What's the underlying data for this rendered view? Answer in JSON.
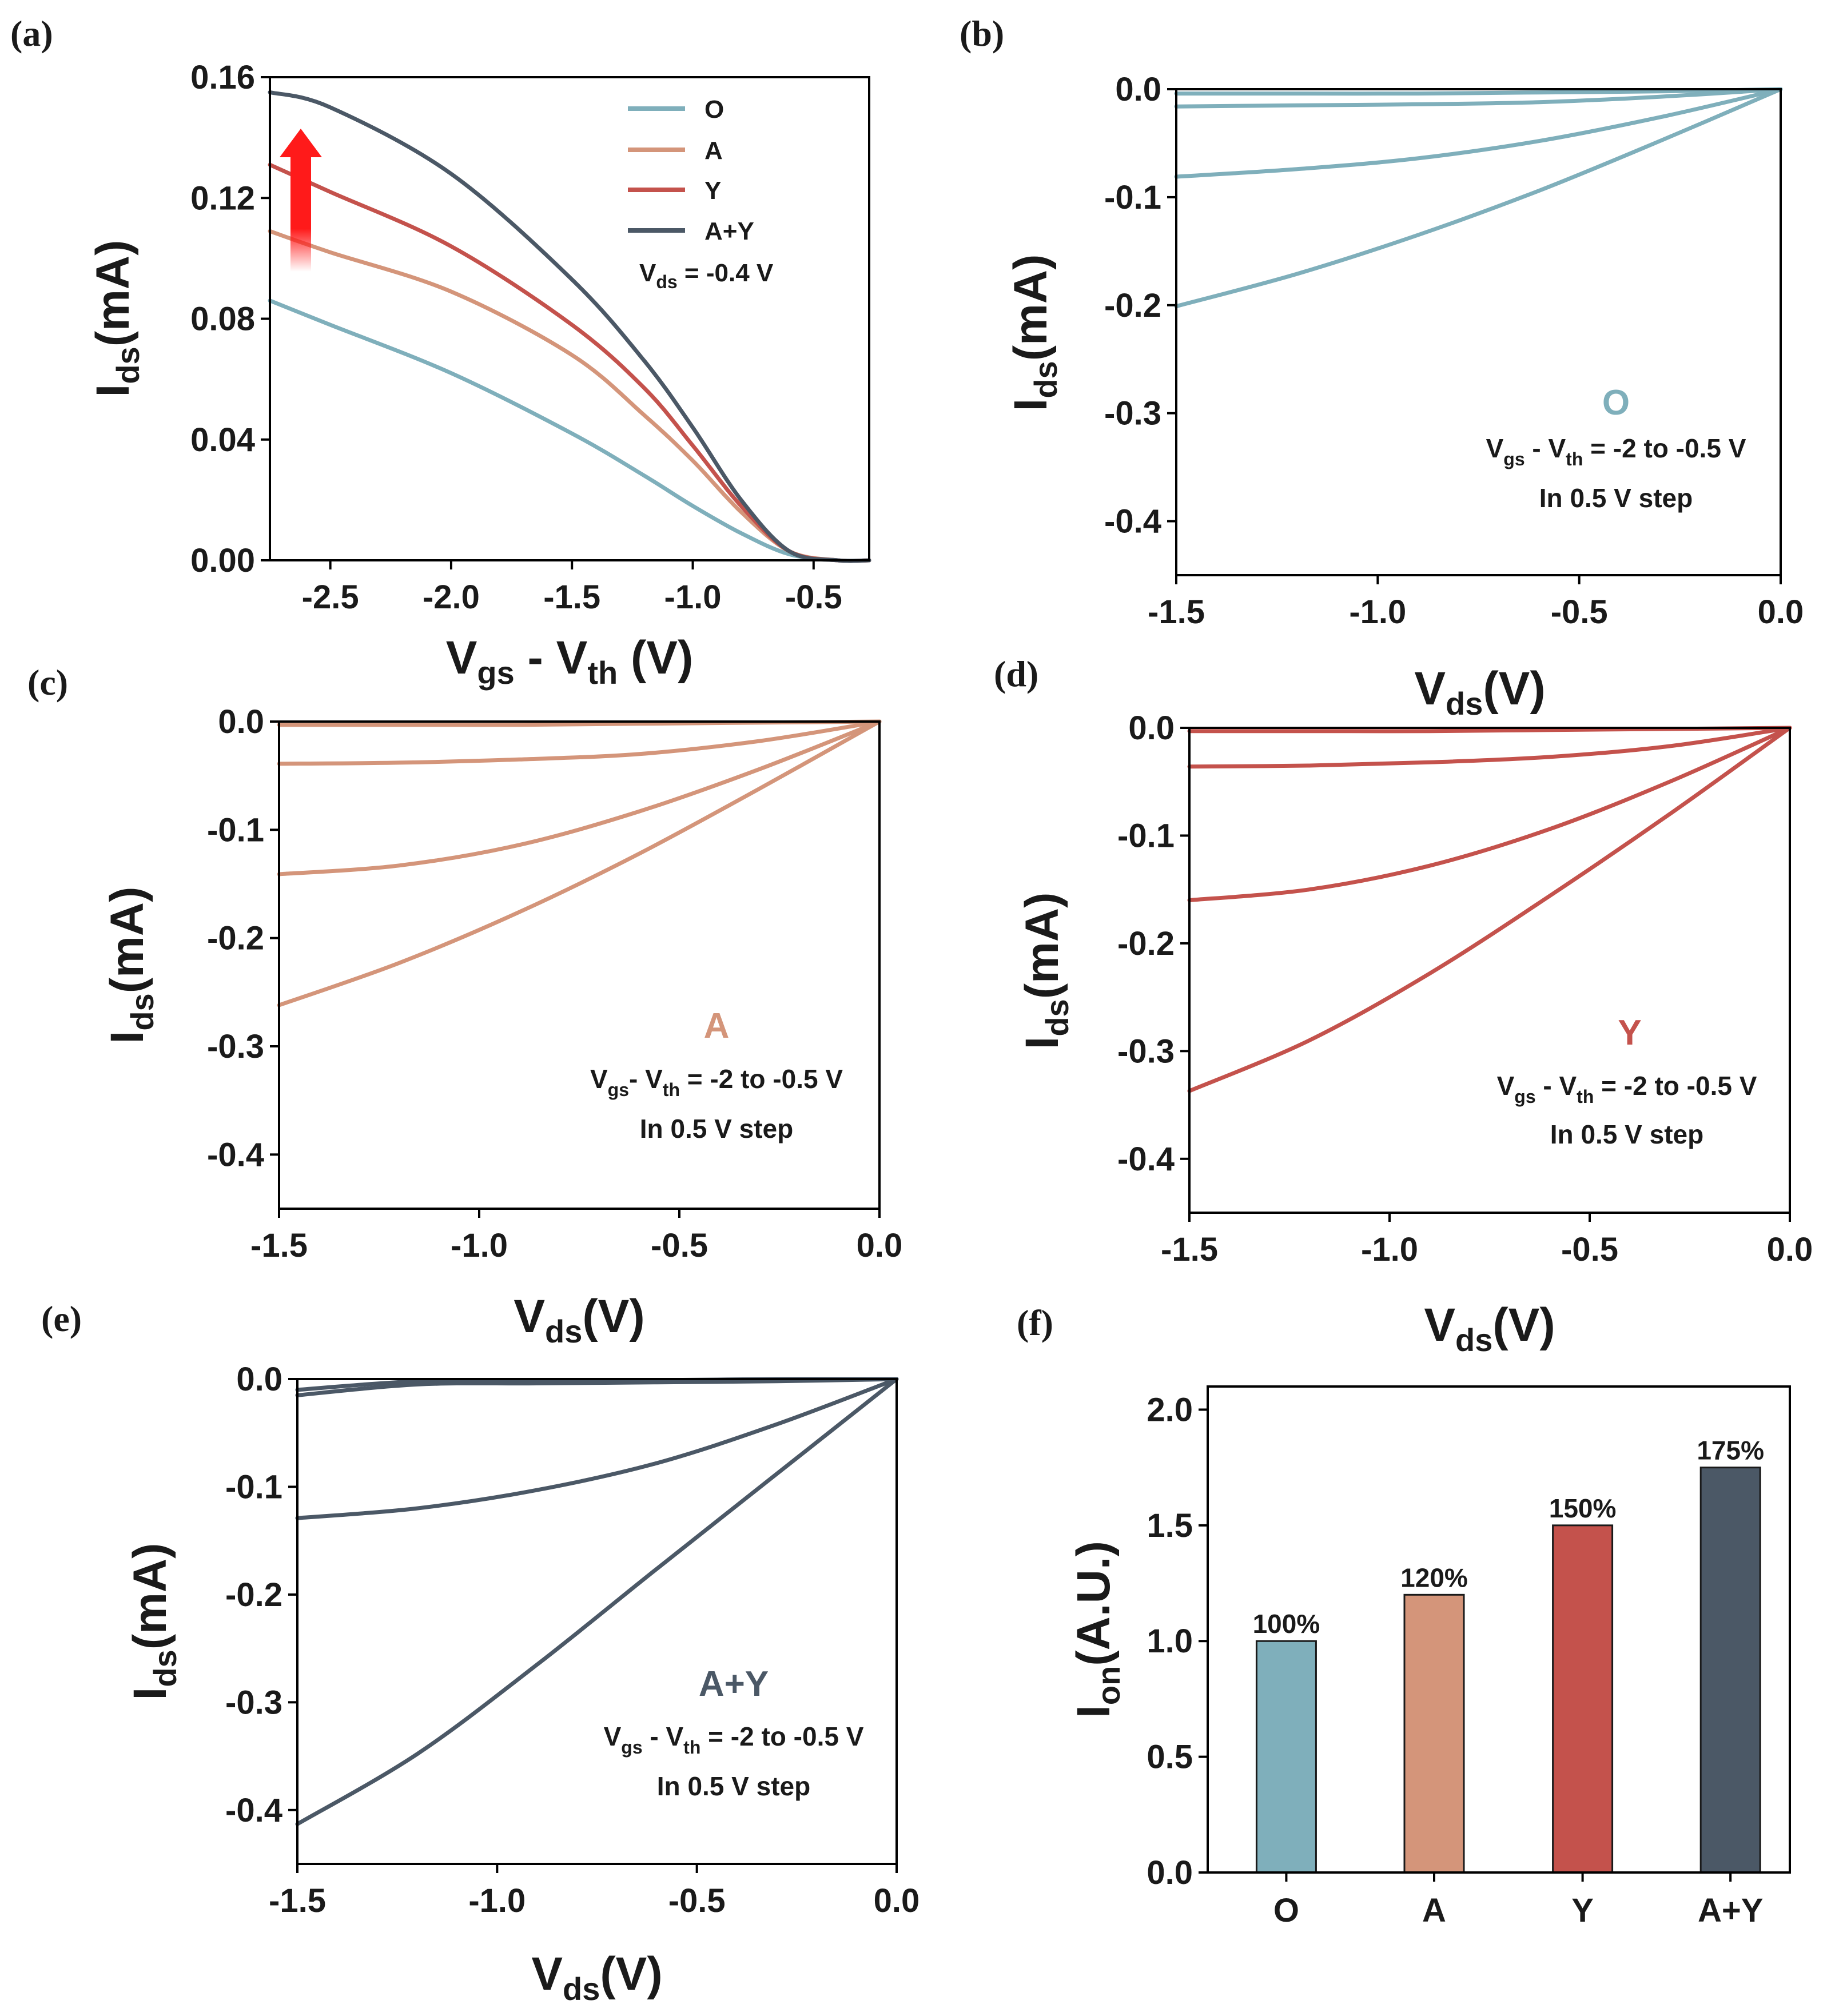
{
  "colors": {
    "O": "#7fafbb",
    "A": "#d4957a",
    "Y": "#c4524c",
    "A+Y": "#4b5866",
    "arrow": "#ff1a1a"
  },
  "chart_data": [
    {
      "id": "a",
      "panel_label": "(a)",
      "type": "line",
      "xlabel": "V",
      "xlabel_sub1": "gs",
      "xlabel_mid": " - V",
      "xlabel_sub2": "th",
      "xlabel_tail": " (V)",
      "ylabel": "I",
      "ylabel_sub": "ds",
      "ylabel_tail": "(mA)",
      "xlim": [
        -2.75,
        -0.27
      ],
      "ylim": [
        0,
        0.16
      ],
      "xticks": [
        -2.5,
        -2.0,
        -1.5,
        -1.0,
        -0.5
      ],
      "xtick_labels": [
        "-2.5",
        "-2.0",
        "-1.5",
        "-1.0",
        "-0.5"
      ],
      "yticks": [
        0,
        0.04,
        0.08,
        0.12,
        0.16
      ],
      "ytick_labels": [
        "0.00",
        "0.04",
        "0.08",
        "0.12",
        "0.16"
      ],
      "legend": [
        "O",
        "A",
        "Y",
        "A+Y"
      ],
      "condition": {
        "pre": "V",
        "sub": "ds",
        "post": " = -0.4 V"
      },
      "series": [
        {
          "name": "O",
          "x": [
            -2.75,
            -2.5,
            -2.0,
            -1.5,
            -1.2,
            -1.0,
            -0.8,
            -0.6,
            -0.4,
            -0.27
          ],
          "values": [
            0.086,
            0.078,
            0.062,
            0.042,
            0.028,
            0.018,
            0.009,
            0.002,
            0.0,
            0.0
          ]
        },
        {
          "name": "A",
          "x": [
            -2.75,
            -2.5,
            -2.0,
            -1.5,
            -1.2,
            -1.0,
            -0.8,
            -0.6,
            -0.4,
            -0.27
          ],
          "values": [
            0.109,
            0.102,
            0.089,
            0.068,
            0.048,
            0.033,
            0.016,
            0.003,
            0.0,
            0.0
          ]
        },
        {
          "name": "Y",
          "x": [
            -2.75,
            -2.5,
            -2.0,
            -1.5,
            -1.2,
            -1.0,
            -0.8,
            -0.6,
            -0.4,
            -0.27
          ],
          "values": [
            0.131,
            0.122,
            0.104,
            0.078,
            0.057,
            0.038,
            0.018,
            0.003,
            0.0,
            0.0
          ]
        },
        {
          "name": "A+Y",
          "x": [
            -2.75,
            -2.5,
            -2.0,
            -1.5,
            -1.2,
            -1.0,
            -0.8,
            -0.6,
            -0.4,
            -0.27
          ],
          "values": [
            0.155,
            0.15,
            0.128,
            0.093,
            0.066,
            0.044,
            0.02,
            0.003,
            0.0,
            0.0
          ]
        }
      ]
    },
    {
      "id": "b",
      "panel_label": "(b)",
      "type": "line",
      "color_key": "O",
      "xlabel": "V",
      "xlabel_sub": "ds",
      "xlabel_tail": "(V)",
      "ylabel": "I",
      "ylabel_sub": "ds",
      "ylabel_tail": "(mA)",
      "xlim": [
        -1.5,
        0
      ],
      "ylim": [
        -0.45,
        0
      ],
      "xticks": [
        -1.5,
        -1.0,
        -0.5,
        0.0
      ],
      "xtick_labels": [
        "-1.5",
        "-1.0",
        "-0.5",
        "0.0"
      ],
      "yticks": [
        0,
        -0.1,
        -0.2,
        -0.3,
        -0.4
      ],
      "ytick_labels": [
        "0.0",
        "-0.1",
        "-0.2",
        "-0.3",
        "-0.4"
      ],
      "sample_label": "O",
      "note_line1": {
        "v1": "V",
        "s1": "gs",
        "mid": " - V",
        "s2": "th",
        "tail": " = -2 to -0.5 V"
      },
      "note_line2": "In 0.5 V step",
      "series": [
        {
          "name": "Vgs-Vth=-0.5",
          "x": [
            -1.5,
            -1.2,
            -0.9,
            -0.6,
            -0.3,
            0
          ],
          "values": [
            -0.004,
            -0.004,
            -0.004,
            -0.003,
            -0.002,
            0
          ]
        },
        {
          "name": "Vgs-Vth=-1.0",
          "x": [
            -1.5,
            -1.2,
            -0.9,
            -0.6,
            -0.3,
            0
          ],
          "values": [
            -0.016,
            -0.015,
            -0.014,
            -0.012,
            -0.007,
            0
          ]
        },
        {
          "name": "Vgs-Vth=-1.5",
          "x": [
            -1.5,
            -1.2,
            -0.9,
            -0.6,
            -0.3,
            0
          ],
          "values": [
            -0.081,
            -0.074,
            -0.064,
            -0.048,
            -0.026,
            0
          ]
        },
        {
          "name": "Vgs-Vth=-2.0",
          "x": [
            -1.5,
            -1.2,
            -0.9,
            -0.6,
            -0.3,
            0
          ],
          "values": [
            -0.201,
            -0.171,
            -0.135,
            -0.094,
            -0.048,
            0
          ]
        }
      ]
    },
    {
      "id": "c",
      "panel_label": "(c)",
      "type": "line",
      "color_key": "A",
      "xlabel": "V",
      "xlabel_sub": "ds",
      "xlabel_tail": "(V)",
      "ylabel": "I",
      "ylabel_sub": "ds",
      "ylabel_tail": "(mA)",
      "xlim": [
        -1.5,
        0
      ],
      "ylim": [
        -0.45,
        0
      ],
      "xticks": [
        -1.5,
        -1.0,
        -0.5,
        0.0
      ],
      "xtick_labels": [
        "-1.5",
        "-1.0",
        "-0.5",
        "0.0"
      ],
      "yticks": [
        0,
        -0.1,
        -0.2,
        -0.3,
        -0.4
      ],
      "ytick_labels": [
        "0.0",
        "-0.1",
        "-0.2",
        "-0.3",
        "-0.4"
      ],
      "sample_label": "A",
      "note_line1": {
        "v1": "V",
        "s1": "gs",
        "mid": "- V",
        "s2": "th",
        "tail": " = -2 to -0.5 V"
      },
      "note_line2": "In 0.5 V step",
      "series": [
        {
          "name": "Vgs-Vth=-0.5",
          "x": [
            -1.5,
            -1.2,
            -0.9,
            -0.6,
            -0.3,
            0
          ],
          "values": [
            -0.003,
            -0.003,
            -0.003,
            -0.002,
            -0.001,
            0
          ]
        },
        {
          "name": "Vgs-Vth=-1.0",
          "x": [
            -1.5,
            -1.2,
            -0.9,
            -0.6,
            -0.3,
            0
          ],
          "values": [
            -0.039,
            -0.038,
            -0.035,
            -0.03,
            -0.018,
            0
          ]
        },
        {
          "name": "Vgs-Vth=-1.5",
          "x": [
            -1.5,
            -1.2,
            -0.9,
            -0.6,
            -0.3,
            0
          ],
          "values": [
            -0.141,
            -0.133,
            -0.114,
            -0.083,
            -0.044,
            0
          ]
        },
        {
          "name": "Vgs-Vth=-2.0",
          "x": [
            -1.5,
            -1.2,
            -0.9,
            -0.6,
            -0.3,
            0
          ],
          "values": [
            -0.262,
            -0.223,
            -0.176,
            -0.122,
            -0.062,
            0
          ]
        }
      ]
    },
    {
      "id": "d",
      "panel_label": "(d)",
      "type": "line",
      "color_key": "Y",
      "xlabel": "V",
      "xlabel_sub": "ds",
      "xlabel_tail": "(V)",
      "ylabel": "I",
      "ylabel_sub": "ds",
      "ylabel_tail": "(mA)",
      "xlim": [
        -1.5,
        0
      ],
      "ylim": [
        -0.45,
        0
      ],
      "xticks": [
        -1.5,
        -1.0,
        -0.5,
        0.0
      ],
      "xtick_labels": [
        "-1.5",
        "-1.0",
        "-0.5",
        "0.0"
      ],
      "yticks": [
        0,
        -0.1,
        -0.2,
        -0.3,
        -0.4
      ],
      "ytick_labels": [
        "0.0",
        "-0.1",
        "-0.2",
        "-0.3",
        "-0.4"
      ],
      "sample_label": "Y",
      "note_line1": {
        "v1": "V",
        "s1": "gs",
        "mid": " - V",
        "s2": "th",
        "tail": " = -2 to -0.5 V"
      },
      "note_line2": "In 0.5 V step",
      "series": [
        {
          "name": "Vgs-Vth=-0.5",
          "x": [
            -1.5,
            -1.2,
            -0.9,
            -0.6,
            -0.3,
            0
          ],
          "values": [
            -0.003,
            -0.003,
            -0.003,
            -0.002,
            -0.001,
            0
          ]
        },
        {
          "name": "Vgs-Vth=-1.0",
          "x": [
            -1.5,
            -1.2,
            -0.9,
            -0.6,
            -0.3,
            0
          ],
          "values": [
            -0.036,
            -0.035,
            -0.032,
            -0.027,
            -0.017,
            0
          ]
        },
        {
          "name": "Vgs-Vth=-1.5",
          "x": [
            -1.5,
            -1.2,
            -0.9,
            -0.6,
            -0.3,
            0
          ],
          "values": [
            -0.16,
            -0.15,
            -0.128,
            -0.094,
            -0.05,
            0
          ]
        },
        {
          "name": "Vgs-Vth=-2.0",
          "x": [
            -1.5,
            -1.2,
            -0.9,
            -0.6,
            -0.3,
            0
          ],
          "values": [
            -0.337,
            -0.29,
            -0.228,
            -0.156,
            -0.08,
            0
          ]
        }
      ]
    },
    {
      "id": "e",
      "panel_label": "(e)",
      "type": "line",
      "color_key": "A+Y",
      "xlabel": "V",
      "xlabel_sub": "ds",
      "xlabel_tail": "(V)",
      "ylabel": "I",
      "ylabel_sub": "ds",
      "ylabel_tail": "(mA)",
      "xlim": [
        -1.5,
        0
      ],
      "ylim": [
        -0.45,
        0
      ],
      "xticks": [
        -1.5,
        -1.0,
        -0.5,
        0.0
      ],
      "xtick_labels": [
        "-1.5",
        "-1.0",
        "-0.5",
        "0.0"
      ],
      "yticks": [
        0,
        -0.1,
        -0.2,
        -0.3,
        -0.4
      ],
      "ytick_labels": [
        "0.0",
        "-0.1",
        "-0.2",
        "-0.3",
        "-0.4"
      ],
      "sample_label": "A+Y",
      "note_line1": {
        "v1": "V",
        "s1": "gs",
        "mid": " - V",
        "s2": "th",
        "tail": " = -2 to -0.5 V"
      },
      "note_line2": "In 0.5 V step",
      "series": [
        {
          "name": "Vgs-Vth=-0.5",
          "x": [
            -1.5,
            -1.2,
            -0.9,
            -0.6,
            -0.3,
            0
          ],
          "values": [
            -0.01,
            -0.002,
            -0.001,
            -0.001,
            0.0,
            0
          ]
        },
        {
          "name": "Vgs-Vth=-1.0",
          "x": [
            -1.5,
            -1.2,
            -0.9,
            -0.6,
            -0.3,
            0
          ],
          "values": [
            -0.015,
            -0.005,
            -0.004,
            -0.003,
            -0.002,
            0
          ]
        },
        {
          "name": "Vgs-Vth=-1.5",
          "x": [
            -1.5,
            -1.2,
            -0.9,
            -0.6,
            -0.3,
            0
          ],
          "values": [
            -0.129,
            -0.12,
            -0.103,
            -0.078,
            -0.042,
            0
          ]
        },
        {
          "name": "Vgs-Vth=-2.0",
          "x": [
            -1.5,
            -1.2,
            -0.9,
            -0.6,
            -0.3,
            0
          ],
          "values": [
            -0.413,
            -0.348,
            -0.265,
            -0.176,
            -0.088,
            0
          ]
        }
      ]
    },
    {
      "id": "f",
      "panel_label": "(f)",
      "type": "bar",
      "xlabel": "",
      "ylabel": "I",
      "ylabel_sub": "on",
      "ylabel_tail": "(A.U.)",
      "ylim": [
        0,
        2.1
      ],
      "yticks": [
        0,
        0.5,
        1.0,
        1.5,
        2.0
      ],
      "ytick_labels": [
        "0.0",
        "0.5",
        "1.0",
        "1.5",
        "2.0"
      ],
      "categories": [
        "O",
        "A",
        "Y",
        "A+Y"
      ],
      "values": [
        1.0,
        1.2,
        1.5,
        1.75
      ],
      "bar_labels": [
        "100%",
        "120%",
        "150%",
        "175%"
      ]
    }
  ]
}
